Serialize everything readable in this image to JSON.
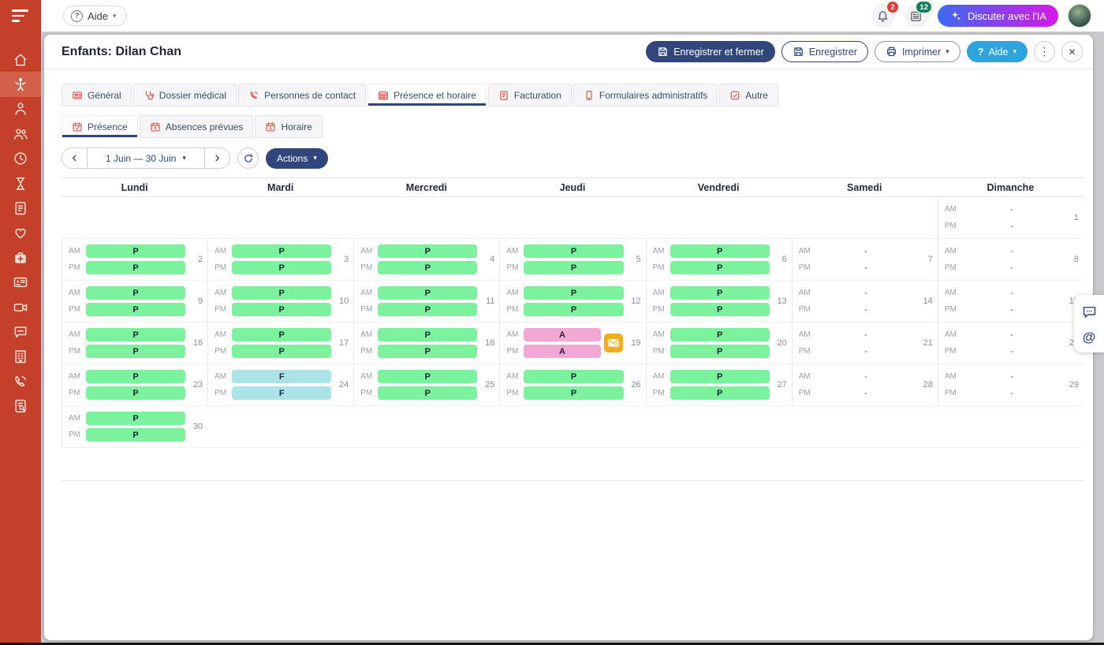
{
  "topbar": {
    "help": {
      "label": "Aide"
    },
    "notifications": {
      "count": "2"
    },
    "updates": {
      "count": "12"
    },
    "ai_chat": {
      "label": "Discuter avec l'IA"
    }
  },
  "sidebar": {
    "items": [
      {
        "icon": "home-icon"
      },
      {
        "icon": "child-icon",
        "active": true
      },
      {
        "icon": "person-icon"
      },
      {
        "icon": "people-icon"
      },
      {
        "icon": "clock-icon"
      },
      {
        "icon": "hourglass-icon"
      },
      {
        "icon": "invoice-icon"
      },
      {
        "icon": "heart-icon"
      },
      {
        "icon": "medkit-icon"
      },
      {
        "icon": "id-card-icon"
      },
      {
        "icon": "video-camera-icon"
      },
      {
        "icon": "chat-icon"
      },
      {
        "icon": "building-icon"
      },
      {
        "icon": "phone-icon"
      },
      {
        "icon": "document-search-icon"
      }
    ]
  },
  "window": {
    "title": "Enfants: Dilan Chan",
    "buttons": {
      "save_close": "Enregistrer et fermer",
      "save": "Enregistrer",
      "print": "Imprimer",
      "help": "Aide"
    },
    "tabs": [
      {
        "label": "Général",
        "icon": "profile-card-icon"
      },
      {
        "label": "Dossier médical",
        "icon": "stethoscope-icon"
      },
      {
        "label": "Personnes de contact",
        "icon": "phone-contact-icon"
      },
      {
        "label": "Présence et horaire",
        "icon": "calendar-grid-icon",
        "active": true
      },
      {
        "label": "Facturation",
        "icon": "billing-icon"
      },
      {
        "label": "Formulaires administratifs",
        "icon": "mobile-form-icon"
      },
      {
        "label": "Autre",
        "icon": "checkbox-icon"
      }
    ],
    "subtabs": [
      {
        "label": "Présence",
        "icon": "calendar-check-icon",
        "active": true
      },
      {
        "label": "Absences prévues",
        "icon": "calendar-absence-icon"
      },
      {
        "label": "Horaire",
        "icon": "calendar-schedule-icon"
      }
    ],
    "date_nav": {
      "range": "1 Juin — 30 Juin",
      "actions_label": "Actions"
    },
    "calendar": {
      "day_headers": [
        "Lundi",
        "Mardi",
        "Mercredi",
        "Jeudi",
        "Vendredi",
        "Samedi",
        "Dimanche"
      ],
      "am_label": "AM",
      "pm_label": "PM",
      "status_colors": {
        "P": "#7cf29c",
        "A": "#f1a8d3",
        "F": "#abe4e7"
      },
      "weeks": [
        [
          null,
          null,
          null,
          null,
          null,
          null,
          {
            "day": 1,
            "am": "-",
            "pm": "-"
          }
        ],
        [
          {
            "day": 2,
            "am": "P",
            "pm": "P"
          },
          {
            "day": 3,
            "am": "P",
            "pm": "P"
          },
          {
            "day": 4,
            "am": "P",
            "pm": "P"
          },
          {
            "day": 5,
            "am": "P",
            "pm": "P"
          },
          {
            "day": 6,
            "am": "P",
            "pm": "P"
          },
          {
            "day": 7,
            "am": "-",
            "pm": "-"
          },
          {
            "day": 8,
            "am": "-",
            "pm": "-"
          }
        ],
        [
          {
            "day": 9,
            "am": "P",
            "pm": "P"
          },
          {
            "day": 10,
            "am": "P",
            "pm": "P"
          },
          {
            "day": 11,
            "am": "P",
            "pm": "P"
          },
          {
            "day": 12,
            "am": "P",
            "pm": "P"
          },
          {
            "day": 13,
            "am": "P",
            "pm": "P"
          },
          {
            "day": 14,
            "am": "-",
            "pm": "-"
          },
          {
            "day": 15,
            "am": "-",
            "pm": "-"
          }
        ],
        [
          {
            "day": 16,
            "am": "P",
            "pm": "P"
          },
          {
            "day": 17,
            "am": "P",
            "pm": "P"
          },
          {
            "day": 18,
            "am": "P",
            "pm": "P"
          },
          {
            "day": 19,
            "am": "A",
            "pm": "A",
            "flag": "mail-notification-icon"
          },
          {
            "day": 20,
            "am": "P",
            "pm": "P"
          },
          {
            "day": 21,
            "am": "-",
            "pm": "-"
          },
          {
            "day": 22,
            "am": "-",
            "pm": "-"
          }
        ],
        [
          {
            "day": 23,
            "am": "P",
            "pm": "P"
          },
          {
            "day": 24,
            "am": "F",
            "pm": "F"
          },
          {
            "day": 25,
            "am": "P",
            "pm": "P"
          },
          {
            "day": 26,
            "am": "P",
            "pm": "P"
          },
          {
            "day": 27,
            "am": "P",
            "pm": "P"
          },
          {
            "day": 28,
            "am": "-",
            "pm": "-"
          },
          {
            "day": 29,
            "am": "-",
            "pm": "-"
          }
        ],
        [
          {
            "day": 30,
            "am": "P",
            "pm": "P"
          },
          null,
          null,
          null,
          null,
          null,
          null
        ]
      ]
    }
  },
  "floating_panel": {
    "icons": [
      "chat-dots-icon",
      "mention-icon"
    ]
  },
  "colors": {
    "sidebar_red": "#c5402b",
    "accent_navy": "#31477b",
    "tab_icon_red": "#e8504a",
    "help_blue": "#2da4dc",
    "present_green": "#7cf29c",
    "absent_pink": "#f1a8d3",
    "closed_teal": "#abe4e7",
    "flag_amber": "#eeae1f",
    "notif_badge_red": "#e53935",
    "updates_badge_green": "#11835a",
    "ai_gradient_start": "#3a6af2",
    "ai_gradient_end": "#d818e8"
  }
}
